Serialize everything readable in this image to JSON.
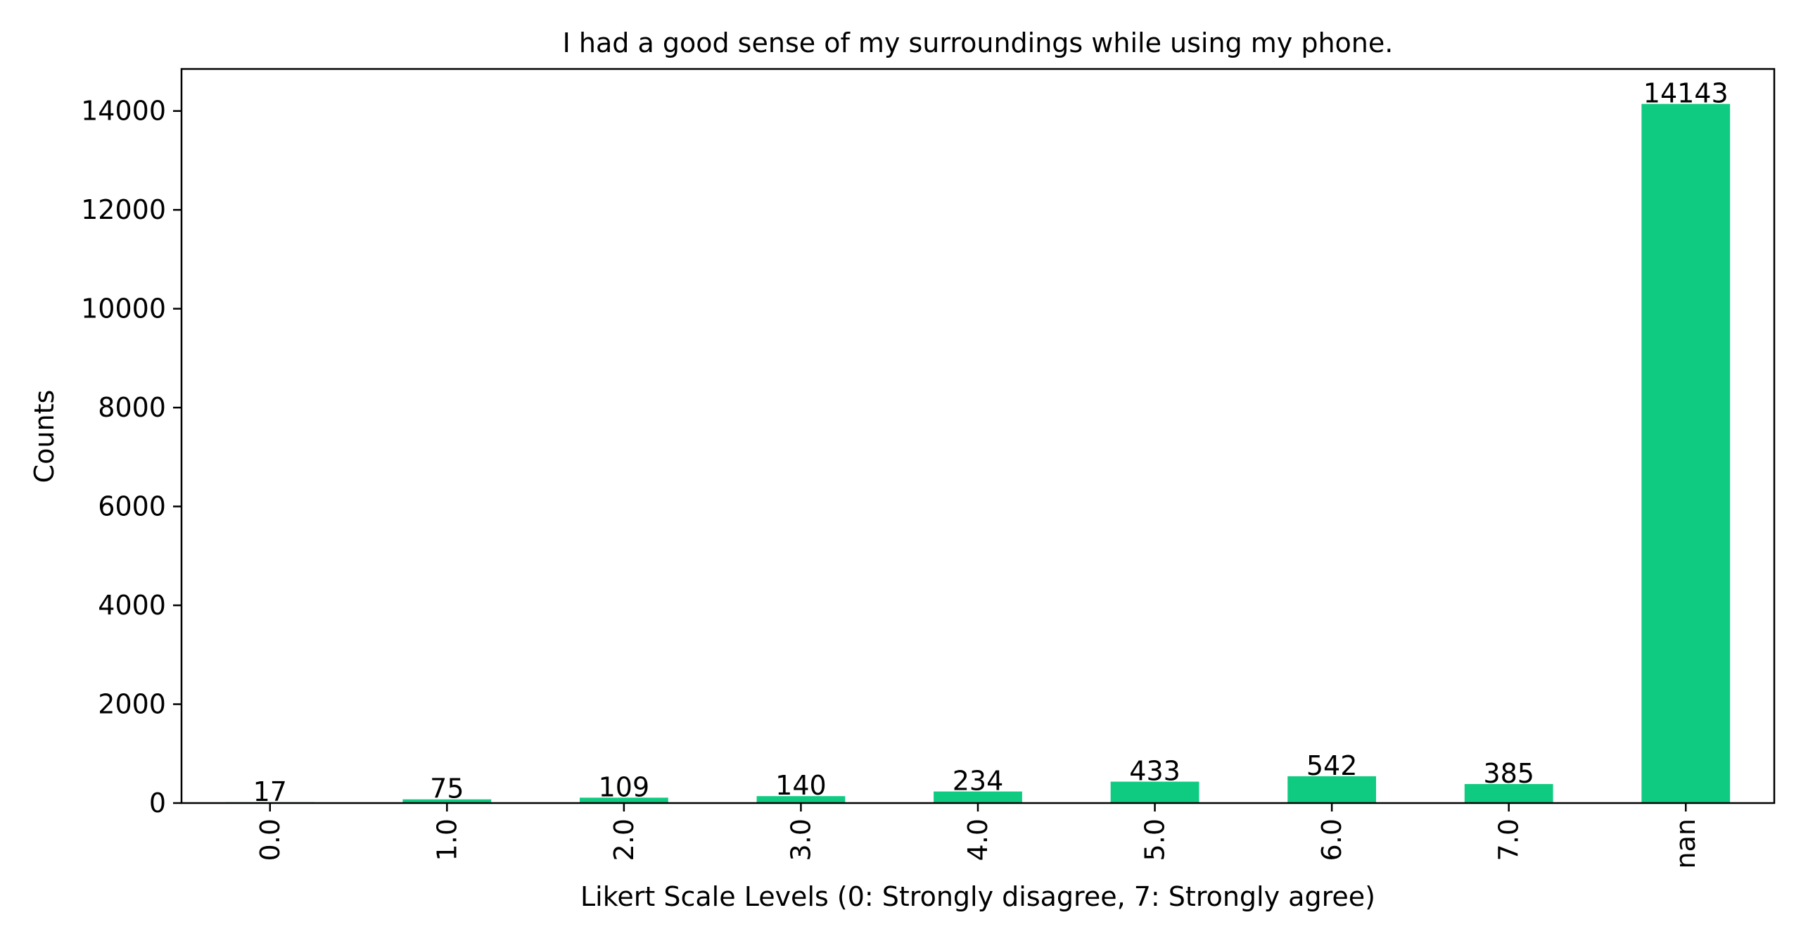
{
  "chart_data": {
    "type": "bar",
    "title": "I had a good sense of my surroundings while using my phone.",
    "xlabel": "Likert Scale Levels (0: Strongly disagree, 7: Strongly agree)",
    "ylabel": "Counts",
    "categories": [
      "0.0",
      "1.0",
      "2.0",
      "3.0",
      "4.0",
      "5.0",
      "6.0",
      "7.0",
      "nan"
    ],
    "values": [
      17,
      75,
      109,
      140,
      234,
      433,
      542,
      385,
      14143
    ],
    "data_labels": [
      "17",
      "75",
      "109",
      "140",
      "234",
      "433",
      "542",
      "385",
      "14143"
    ],
    "ylim": [
      0,
      14850
    ],
    "yticks": [
      0,
      2000,
      4000,
      6000,
      8000,
      10000,
      12000,
      14000
    ],
    "ytick_labels": [
      "0",
      "2000",
      "4000",
      "6000",
      "8000",
      "10000",
      "12000",
      "14000"
    ],
    "bar_color": "#0fcb82",
    "grid": false,
    "legend": "none"
  }
}
